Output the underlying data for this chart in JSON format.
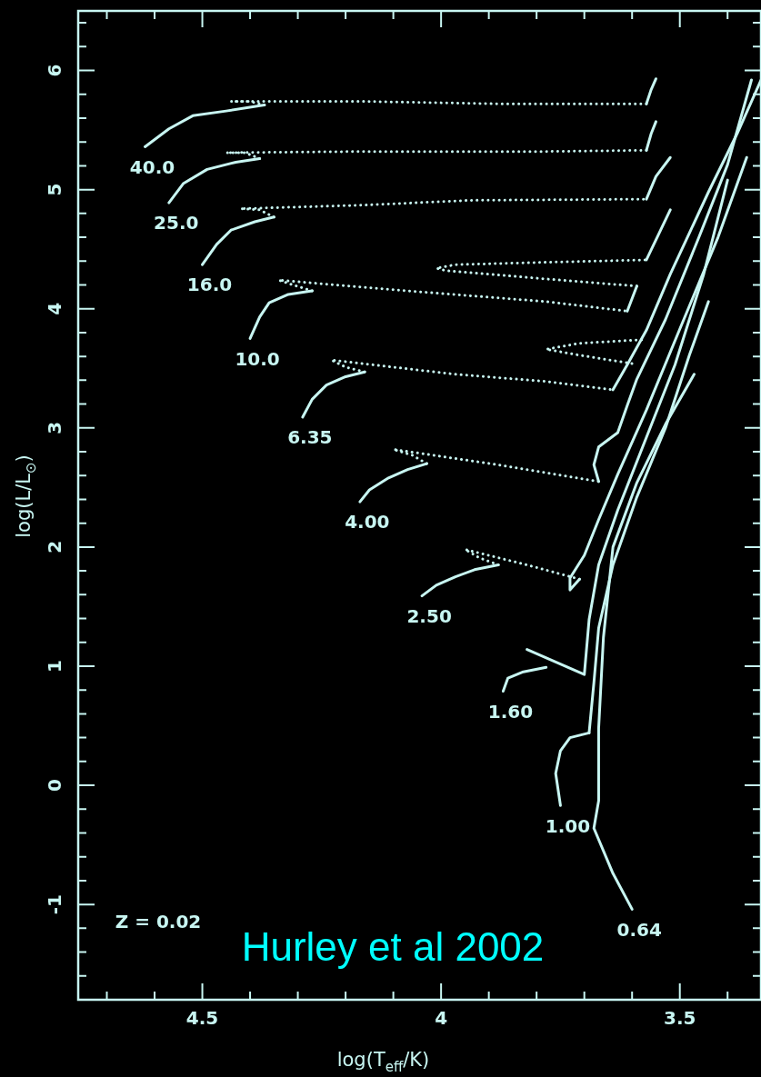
{
  "chart_data": {
    "type": "line",
    "xlabel": "log(T$_{eff}$/K)",
    "ylabel": "log(L/L$_{⊙}$)",
    "xlim": [
      4.76,
      3.33
    ],
    "ylim": [
      -1.8,
      6.5
    ],
    "xticks": [
      {
        "value": 4.7,
        "label": null
      },
      {
        "value": 4.6,
        "label": null
      },
      4.5,
      {
        "value": 4.4,
        "label": null
      },
      {
        "value": 4.3,
        "label": null
      },
      {
        "value": 4.2,
        "label": null
      },
      {
        "value": 4.1,
        "label": null
      },
      4,
      {
        "value": 3.9,
        "label": null
      },
      {
        "value": 3.8,
        "label": null
      },
      {
        "value": 3.7,
        "label": null
      },
      {
        "value": 3.6,
        "label": null
      },
      3.5,
      {
        "value": 3.4,
        "label": null
      }
    ],
    "yticks": [
      {
        "value": -1.6,
        "label": null
      },
      {
        "value": -1.4,
        "label": null
      },
      {
        "value": -1.2,
        "label": null
      },
      -1,
      {
        "value": -0.8,
        "label": null
      },
      {
        "value": -0.6,
        "label": null
      },
      {
        "value": -0.4,
        "label": null
      },
      {
        "value": -0.2,
        "label": null
      },
      0,
      {
        "value": 0.2,
        "label": null
      },
      {
        "value": 0.4,
        "label": null
      },
      {
        "value": 0.6,
        "label": null
      },
      {
        "value": 0.8,
        "label": null
      },
      1,
      {
        "value": 1.2,
        "label": null
      },
      {
        "value": 1.4,
        "label": null
      },
      {
        "value": 1.6,
        "label": null
      },
      {
        "value": 1.8,
        "label": null
      },
      2,
      {
        "value": 2.2,
        "label": null
      },
      {
        "value": 2.4,
        "label": null
      },
      {
        "value": 2.6,
        "label": null
      },
      {
        "value": 2.8,
        "label": null
      },
      3,
      {
        "value": 3.2,
        "label": null
      },
      {
        "value": 3.4,
        "label": null
      },
      {
        "value": 3.6,
        "label": null
      },
      {
        "value": 3.8,
        "label": null
      },
      4,
      {
        "value": 4.2,
        "label": null
      },
      {
        "value": 4.4,
        "label": null
      },
      {
        "value": 4.6,
        "label": null
      },
      {
        "value": 4.8,
        "label": null
      },
      5,
      {
        "value": 5.2,
        "label": null
      },
      {
        "value": 5.4,
        "label": null
      },
      {
        "value": 5.6,
        "label": null
      },
      {
        "value": 5.8,
        "label": null
      },
      6,
      {
        "value": 6.2,
        "label": null
      },
      {
        "value": 6.4,
        "label": null
      }
    ],
    "grid": false,
    "legend": false,
    "marker": "none",
    "annotations": [
      "Z = 0.02",
      "Hurley et al 2002"
    ],
    "series": [
      {
        "name": "40.0",
        "color": "#c8f6f2",
        "line_style": "solid",
        "x": [
          4.62,
          4.57,
          4.52,
          4.45,
          4.37
        ],
        "values": [
          5.36,
          5.51,
          5.62,
          5.66,
          5.71
        ]
      },
      {
        "color": "#c8f6f2",
        "line_style": "dotted",
        "x": [
          4.37,
          4.4,
          4.44,
          4.16,
          3.88,
          3.57
        ],
        "values": [
          5.71,
          5.74,
          5.74,
          5.74,
          5.72,
          5.72
        ]
      },
      {
        "color": "#c8f6f2",
        "line_style": "solid",
        "x": [
          3.57,
          3.56,
          3.55
        ],
        "values": [
          5.72,
          5.84,
          5.93
        ]
      },
      {
        "name": "25.0",
        "color": "#c8f6f2",
        "line_style": "solid",
        "x": [
          4.57,
          4.54,
          4.49,
          4.43,
          4.38
        ],
        "values": [
          4.89,
          5.05,
          5.17,
          5.23,
          5.26
        ]
      },
      {
        "color": "#c8f6f2",
        "line_style": "dotted",
        "x": [
          4.38,
          4.41,
          4.45,
          4.16,
          3.78,
          3.57
        ],
        "values": [
          5.26,
          5.31,
          5.31,
          5.32,
          5.32,
          5.33
        ]
      },
      {
        "color": "#c8f6f2",
        "line_style": "solid",
        "x": [
          3.57,
          3.56,
          3.55
        ],
        "values": [
          5.33,
          5.47,
          5.57
        ]
      },
      {
        "name": "16.0",
        "color": "#c8f6f2",
        "line_style": "solid",
        "x": [
          4.5,
          4.47,
          4.44,
          4.39,
          4.35
        ],
        "values": [
          4.37,
          4.54,
          4.66,
          4.73,
          4.77
        ]
      },
      {
        "color": "#c8f6f2",
        "line_style": "dotted",
        "x": [
          4.35,
          4.38,
          4.42,
          4.16,
          3.94,
          3.57
        ],
        "values": [
          4.77,
          4.83,
          4.84,
          4.87,
          4.91,
          4.92
        ]
      },
      {
        "color": "#c8f6f2",
        "line_style": "solid",
        "x": [
          3.57,
          3.55,
          3.52
        ],
        "values": [
          4.92,
          5.11,
          5.27
        ]
      },
      {
        "name": "10.0",
        "color": "#c8f6f2",
        "line_style": "solid",
        "x": [
          4.4,
          4.38,
          4.36,
          4.32,
          4.27
        ],
        "values": [
          3.75,
          3.93,
          4.05,
          4.12,
          4.15
        ]
      },
      {
        "color": "#c8f6f2",
        "line_style": "dotted",
        "x": [
          4.27,
          4.31,
          4.34,
          4.07,
          3.78,
          3.61
        ],
        "values": [
          4.15,
          4.2,
          4.24,
          4.15,
          4.06,
          3.98
        ]
      },
      {
        "color": "#c8f6f2",
        "line_style": "solid",
        "x": [
          3.61,
          3.59
        ],
        "values": [
          3.98,
          4.19
        ]
      },
      {
        "color": "#c8f6f2",
        "line_style": "dotted",
        "x": [
          3.59,
          3.78,
          3.99,
          4.01,
          3.97,
          3.78,
          3.57
        ],
        "values": [
          4.19,
          4.25,
          4.32,
          4.34,
          4.37,
          4.39,
          4.41
        ]
      },
      {
        "color": "#c8f6f2",
        "line_style": "solid",
        "x": [
          3.57,
          3.52
        ],
        "values": [
          4.41,
          4.83
        ]
      },
      {
        "name": "6.35",
        "color": "#c8f6f2",
        "line_style": "solid",
        "x": [
          4.29,
          4.27,
          4.24,
          4.2,
          4.16
        ],
        "values": [
          3.09,
          3.24,
          3.36,
          3.43,
          3.47
        ]
      },
      {
        "color": "#c8f6f2",
        "line_style": "dotted",
        "x": [
          4.16,
          4.2,
          4.23,
          3.97,
          3.78,
          3.64
        ],
        "values": [
          3.47,
          3.51,
          3.57,
          3.45,
          3.39,
          3.32
        ]
      },
      {
        "color": "#c8f6f2",
        "line_style": "solid",
        "x": [
          3.64,
          3.61,
          3.57,
          3.52,
          3.44,
          3.38,
          3.33
        ],
        "values": [
          3.32,
          3.53,
          3.82,
          4.29,
          4.98,
          5.47,
          5.92
        ]
      },
      {
        "color": "#c8f6f2",
        "line_style": "dotted",
        "x": [
          3.58,
          3.71,
          3.78,
          3.71,
          3.6
        ],
        "values": [
          3.74,
          3.71,
          3.66,
          3.61,
          3.54
        ]
      },
      {
        "name": "4.00",
        "color": "#c8f6f2",
        "line_style": "solid",
        "x": [
          4.17,
          4.15,
          4.11,
          4.07,
          4.03
        ],
        "values": [
          2.38,
          2.48,
          2.58,
          2.65,
          2.7
        ]
      },
      {
        "color": "#c8f6f2",
        "line_style": "dotted",
        "x": [
          4.03,
          4.06,
          4.1,
          3.88,
          3.67
        ],
        "values": [
          2.7,
          2.77,
          2.82,
          2.69,
          2.55
        ]
      },
      {
        "color": "#c8f6f2",
        "line_style": "solid",
        "x": [
          3.67,
          3.68,
          3.67,
          3.63,
          3.61,
          3.59,
          3.53,
          3.46,
          3.4,
          3.35
        ],
        "values": [
          2.55,
          2.69,
          2.84,
          2.96,
          3.19,
          3.41,
          3.91,
          4.6,
          5.21,
          5.92
        ]
      },
      {
        "name": "2.50",
        "color": "#c8f6f2",
        "line_style": "solid",
        "x": [
          4.04,
          4.01,
          3.97,
          3.93,
          3.88
        ],
        "values": [
          1.59,
          1.68,
          1.75,
          1.81,
          1.85
        ]
      },
      {
        "color": "#c8f6f2",
        "line_style": "dotted",
        "x": [
          3.88,
          3.92,
          3.95,
          3.82,
          3.71
        ],
        "values": [
          1.85,
          1.91,
          1.98,
          1.85,
          1.73
        ]
      },
      {
        "color": "#c8f6f2",
        "line_style": "solid",
        "x": [
          3.71,
          3.73,
          3.73,
          3.7,
          3.67,
          3.63,
          3.57,
          3.5,
          3.42,
          3.36
        ],
        "values": [
          1.73,
          1.64,
          1.74,
          1.93,
          2.23,
          2.61,
          3.15,
          3.83,
          4.6,
          5.27
        ]
      },
      {
        "name": "1.60",
        "color": "#c8f6f2",
        "line_style": "solid",
        "x": [
          3.87,
          3.86,
          3.83,
          3.78
        ],
        "values": [
          0.79,
          0.9,
          0.95,
          0.99
        ]
      },
      {
        "color": "#c8f6f2",
        "line_style": "solid",
        "x": [
          3.82,
          3.7,
          3.69,
          3.67,
          3.63,
          3.57,
          3.51,
          3.45,
          3.4
        ],
        "values": [
          1.14,
          0.93,
          1.39,
          1.85,
          2.31,
          2.92,
          3.53,
          4.29,
          5.08
        ]
      },
      {
        "name": "1.00",
        "color": "#c8f6f2",
        "line_style": "solid",
        "x": [
          3.75,
          3.76,
          3.75,
          3.73,
          3.69
        ],
        "values": [
          -0.17,
          0.1,
          0.29,
          0.4,
          0.44
        ]
      },
      {
        "color": "#c8f6f2",
        "line_style": "solid",
        "x": [
          3.69,
          3.68,
          3.67,
          3.64,
          3.59,
          3.53,
          3.48,
          3.44
        ],
        "values": [
          0.44,
          0.86,
          1.32,
          1.85,
          2.42,
          3.0,
          3.61,
          4.06
        ]
      },
      {
        "name": "0.64",
        "color": "#c8f6f2",
        "line_style": "solid",
        "x": [
          3.6,
          3.64,
          3.68,
          3.67,
          3.67,
          3.66,
          3.64,
          3.59,
          3.53,
          3.47
        ],
        "values": [
          -1.04,
          -0.74,
          -0.36,
          -0.13,
          0.48,
          1.24,
          2.0,
          2.54,
          3.03,
          3.45
        ]
      }
    ]
  }
}
